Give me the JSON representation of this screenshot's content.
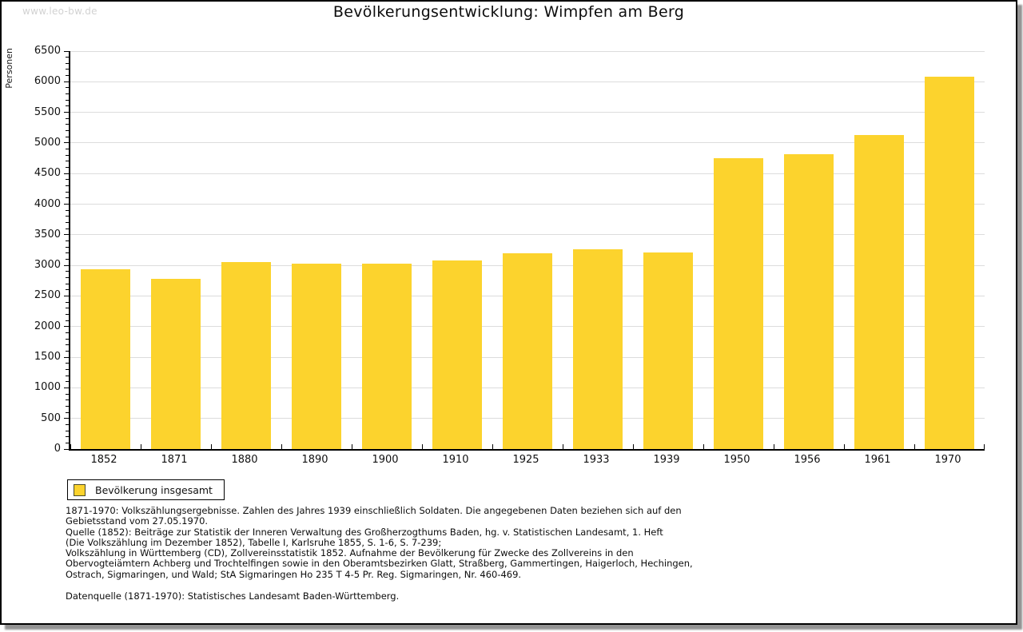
{
  "watermark": "www.leo-bw.de",
  "header": {
    "title": "Bevölkerungsentwicklung: Wimpfen am Berg"
  },
  "chart_data": {
    "type": "bar",
    "title": "Bevölkerungsentwicklung: Wimpfen am Berg",
    "xlabel": "",
    "ylabel": "Personen",
    "categories": [
      "1852",
      "1871",
      "1880",
      "1890",
      "1900",
      "1910",
      "1925",
      "1933",
      "1939",
      "1950",
      "1956",
      "1961",
      "1970"
    ],
    "values": [
      2940,
      2780,
      3050,
      3030,
      3030,
      3080,
      3195,
      3260,
      3210,
      4750,
      4815,
      5130,
      6085
    ],
    "ylim": [
      0,
      6500
    ],
    "ytick_step": 500,
    "y_minor_tick_step": 100,
    "grid": true,
    "legend_label": "Bevölkerung insgesamt",
    "legend_position": "bottom-left",
    "bar_color": "#FCD32D"
  },
  "legend": {
    "label": "Bevölkerung insgesamt"
  },
  "footnotes": {
    "lines": [
      "1871-1970: Volkszählungsergebnisse. Zahlen des Jahres 1939 einschließlich Soldaten. Die angegebenen Daten beziehen sich auf den",
      "Gebietsstand vom 27.05.1970.",
      "Quelle (1852): Beiträge zur Statistik der Inneren Verwaltung des Großherzogthums Baden, hg. v. Statistischen Landesamt, 1. Heft",
      "(Die Volkszählung im Dezember 1852), Tabelle I, Karlsruhe 1855, S. 1-6, S. 7-239;",
      "Volkszählung in Württemberg (CD), Zollvereinsstatistik 1852. Aufnahme der Bevölkerung für Zwecke des Zollvereins in den",
      "Obervogteiämtern Achberg und Trochtelfingen sowie in den Oberamtsbezirken Glatt, Straßberg, Gammertingen, Haigerloch, Hechingen,",
      "Ostrach, Sigmaringen, und Wald; StA Sigmaringen Ho 235 T 4-5 Pr. Reg. Sigmaringen, Nr. 460-469."
    ],
    "datasource": "Datenquelle (1871-1970): Statistisches Landesamt Baden-Württemberg."
  },
  "colors": {
    "bar": "#FCD32D",
    "grid": "#DCDCDC",
    "axis": "#000000",
    "watermark": "#D2D2D2",
    "card_shadow": "#939393"
  }
}
